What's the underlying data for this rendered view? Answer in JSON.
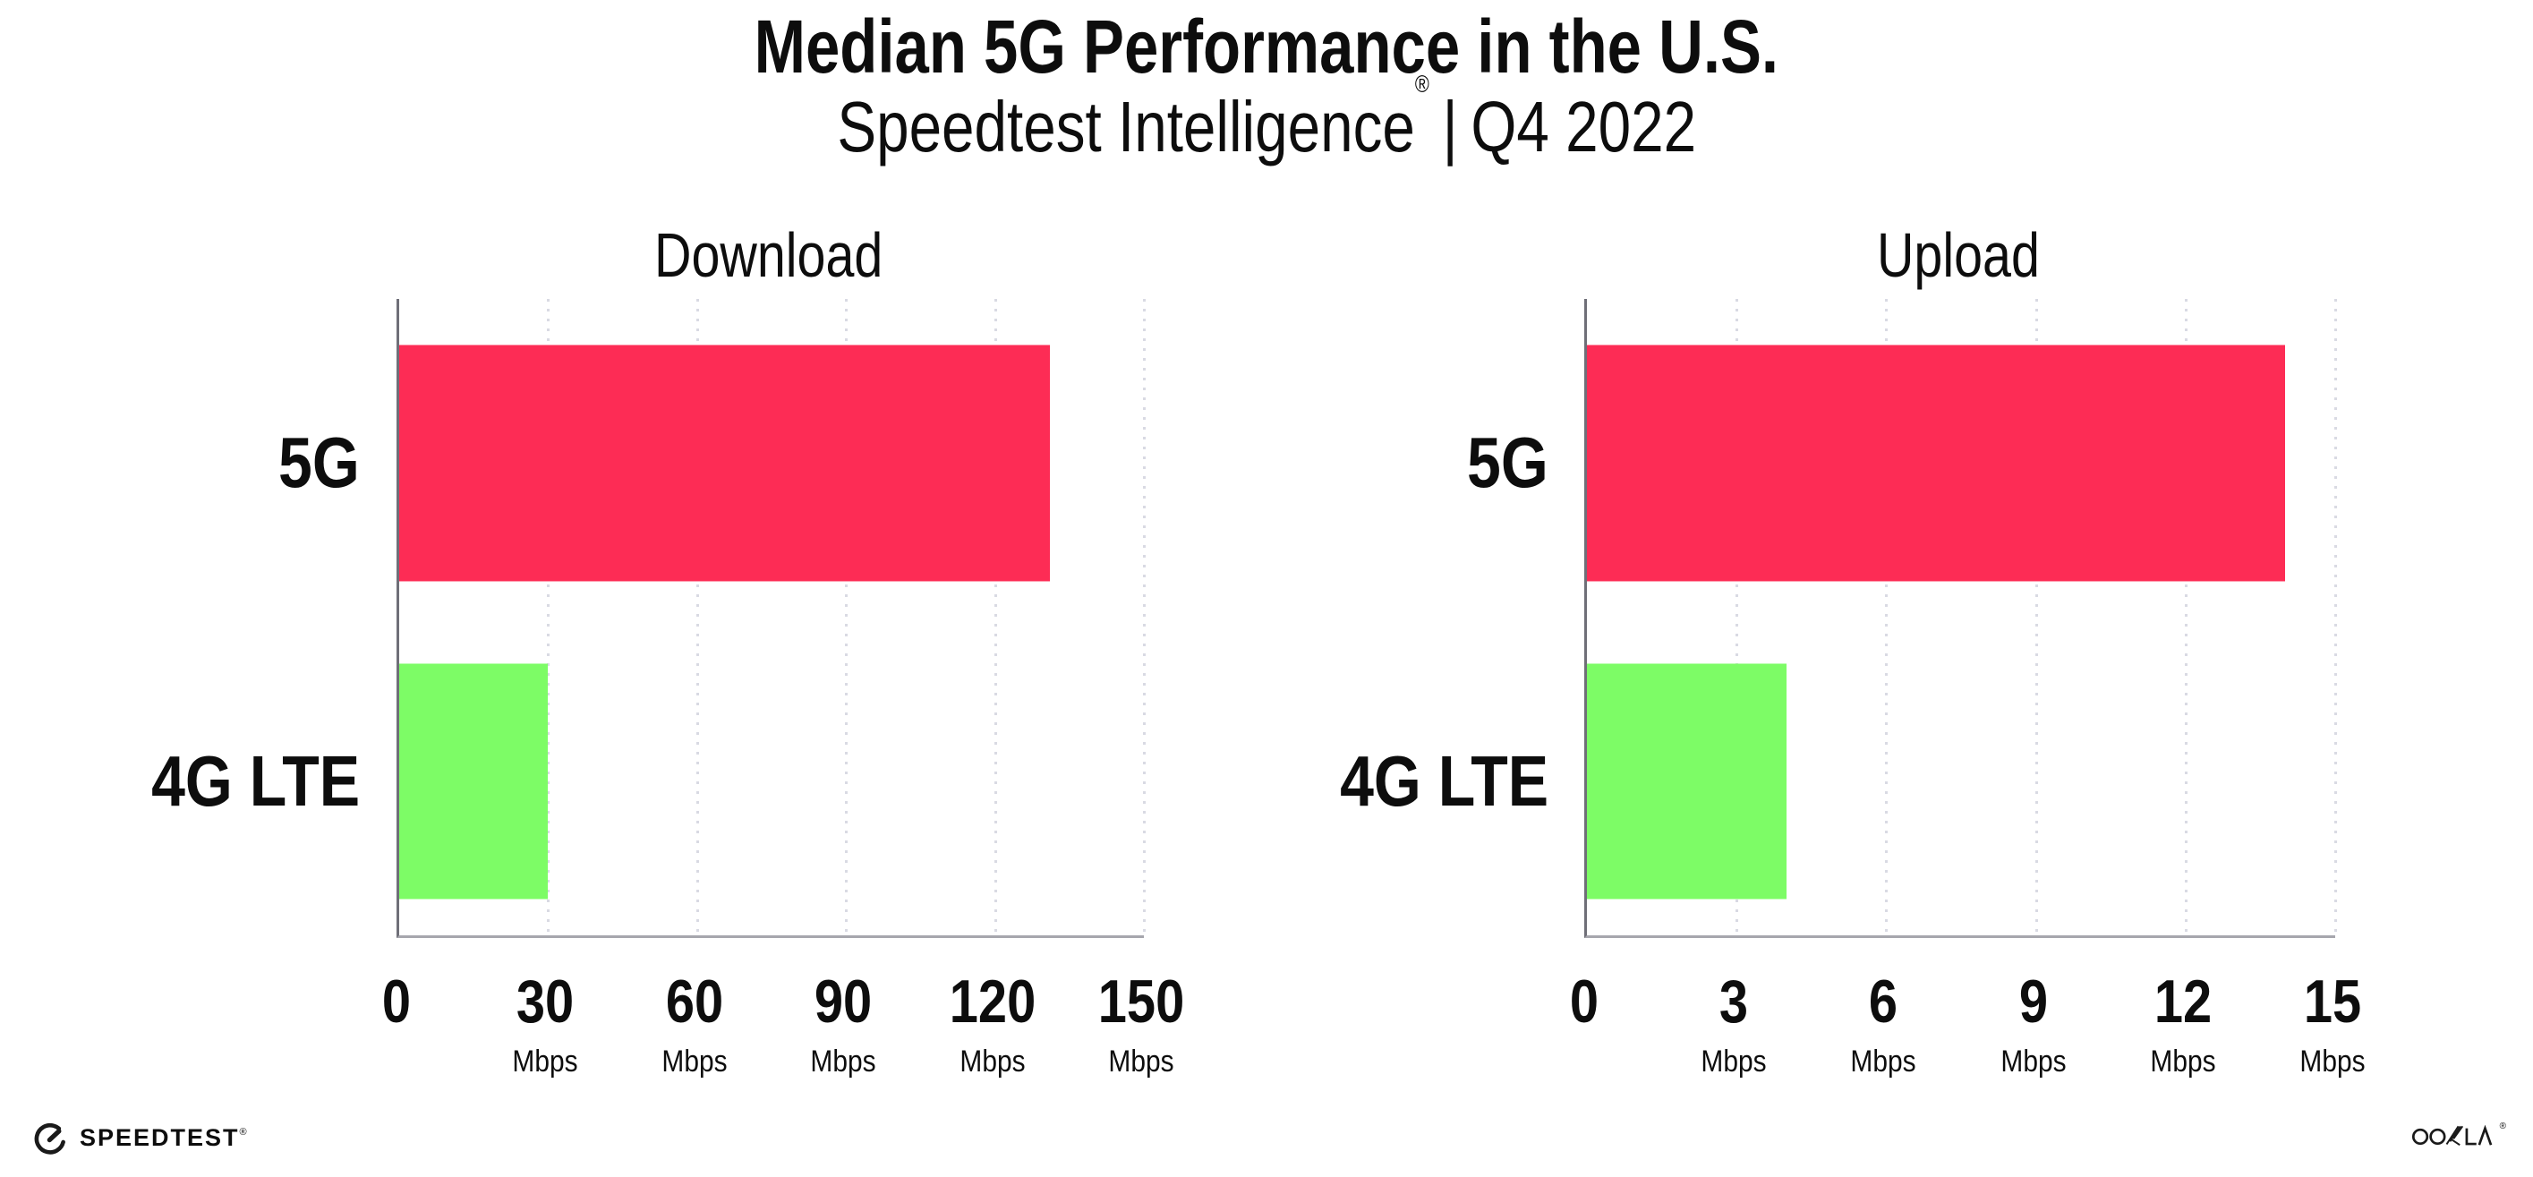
{
  "header": {
    "title": "Median 5G Performance in the U.S.",
    "subtitle_brand": "Speedtest Intelligence",
    "subtitle_registered": "®",
    "subtitle_separator": "|",
    "subtitle_period": "Q4 2022"
  },
  "chart_data": [
    {
      "type": "bar",
      "orientation": "horizontal",
      "title": "Download",
      "categories": [
        "5G",
        "4G LTE"
      ],
      "values": [
        131,
        30
      ],
      "unit": "Mbps",
      "xlim": [
        0,
        150
      ],
      "xticks": [
        0,
        30,
        60,
        90,
        120,
        150
      ],
      "bar_colors": [
        "#fd2c55",
        "#7dfc66"
      ],
      "grid": "dotted-vertical-gridlines",
      "legend": "none"
    },
    {
      "type": "bar",
      "orientation": "horizontal",
      "title": "Upload",
      "categories": [
        "5G",
        "4G LTE"
      ],
      "values": [
        14,
        4
      ],
      "unit": "Mbps",
      "xlim": [
        0,
        15
      ],
      "xticks": [
        0,
        3,
        6,
        9,
        12,
        15
      ],
      "bar_colors": [
        "#fd2c55",
        "#7dfc66"
      ],
      "grid": "dotted-vertical-gridlines",
      "legend": "none"
    }
  ],
  "footer": {
    "speedtest_wordmark": "SPEEDTEST",
    "speedtest_registered": "®",
    "ookla_wordmark": "OOKLA",
    "ookla_registered": "®"
  },
  "style": {
    "bar_color_5g": "#fd2c55",
    "bar_color_4g_lte": "#7dfc66",
    "axis_color": "#6f6f78",
    "gridline_color": "#d9dae3",
    "text_color": "#0d0d0d",
    "background": "#ffffff"
  }
}
